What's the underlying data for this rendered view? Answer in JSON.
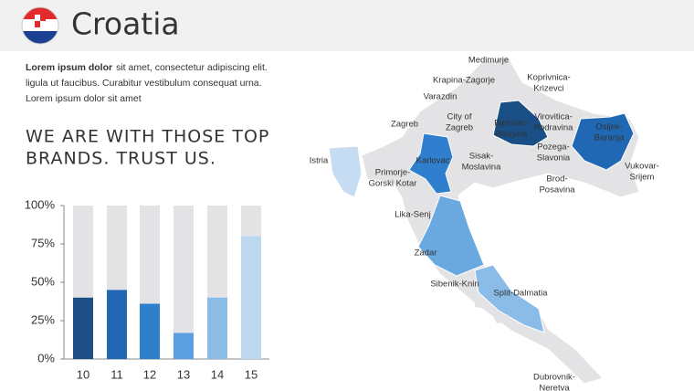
{
  "header": {
    "title": "Croatia"
  },
  "intro": {
    "bold": "Lorem ipsum dolor",
    "lines": [
      "sit amet, consectetur  adipiscing elit.",
      "ligula ut faucibus. Curabitur vestibulum consequat urna.",
      "Lorem ipsum dolor sit amet"
    ]
  },
  "heading": [
    "WE ARE WITH THOSE TOP",
    "BRANDS. TRUST US."
  ],
  "chart_data": {
    "type": "bar",
    "categories": [
      "10",
      "11",
      "12",
      "13",
      "14",
      "15"
    ],
    "values": [
      40,
      45,
      36,
      17,
      40,
      80
    ],
    "colors": [
      "#1f4e84",
      "#2068b4",
      "#2f80cc",
      "#5a9fe0",
      "#8bbce8",
      "#bcd8f0"
    ],
    "ylim": [
      0,
      100
    ],
    "yticks": [
      {
        "value": 0,
        "label": "0%"
      },
      {
        "value": 25,
        "label": "25%"
      },
      {
        "value": 50,
        "label": "50%"
      },
      {
        "value": 75,
        "label": "75%"
      },
      {
        "value": 100,
        "label": "100%"
      }
    ]
  },
  "map": {
    "regions": [
      [
        "Medimurje"
      ],
      [
        "Krapina-Zagorje"
      ],
      [
        "Koprivnica-",
        "Krizevci"
      ],
      [
        "Varazdin"
      ],
      [
        "City of",
        "Zagreb"
      ],
      [
        "Zagreb"
      ],
      [
        "Bjelovar-",
        "Bilogora"
      ],
      [
        "Virovitica-",
        "Podravina"
      ],
      [
        "Osijek-",
        "Baranja"
      ],
      [
        "Istria"
      ],
      [
        "Karlovac"
      ],
      [
        "Sisak-",
        "Moslavina"
      ],
      [
        "Pozega-",
        "Slavonia"
      ],
      [
        "Vukovar-",
        "Srijem"
      ],
      [
        "Primorje-",
        "Gorski Kotar"
      ],
      [
        "Brod-",
        "Posavina"
      ],
      [
        "Lika-Senj"
      ],
      [
        "Zadar"
      ],
      [
        "Sibenik-Knin"
      ],
      [
        "Split-Dalmatia"
      ],
      [
        "Dubrovnik-",
        "Neretva"
      ]
    ]
  }
}
